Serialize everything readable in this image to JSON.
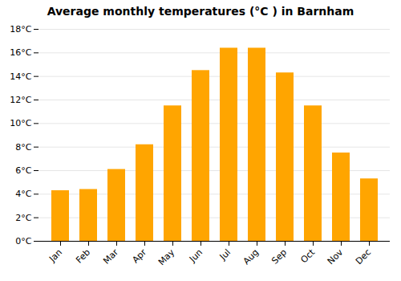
{
  "chart_data": {
    "type": "bar",
    "title": "Average monthly temperatures (°C ) in Barnham",
    "categories": [
      "Jan",
      "Feb",
      "Mar",
      "Apr",
      "May",
      "Jun",
      "Jul",
      "Aug",
      "Sep",
      "Oct",
      "Nov",
      "Dec"
    ],
    "values": [
      4.3,
      4.4,
      6.1,
      8.2,
      11.5,
      14.5,
      16.4,
      16.4,
      14.3,
      11.5,
      7.5,
      5.3
    ],
    "color": "#FFA500",
    "ylim": [
      0,
      18
    ],
    "yticks": [
      {
        "value": 0,
        "label": "0°C"
      },
      {
        "value": 2,
        "label": "2°C"
      },
      {
        "value": 4,
        "label": "4°C"
      },
      {
        "value": 6,
        "label": "6°C"
      },
      {
        "value": 8,
        "label": "8°C"
      },
      {
        "value": 10,
        "label": "10°C"
      },
      {
        "value": 12,
        "label": "12°C"
      },
      {
        "value": 14,
        "label": "14°C"
      },
      {
        "value": 16,
        "label": "16°C"
      },
      {
        "value": 18,
        "label": "18°C"
      }
    ],
    "grid": true
  }
}
